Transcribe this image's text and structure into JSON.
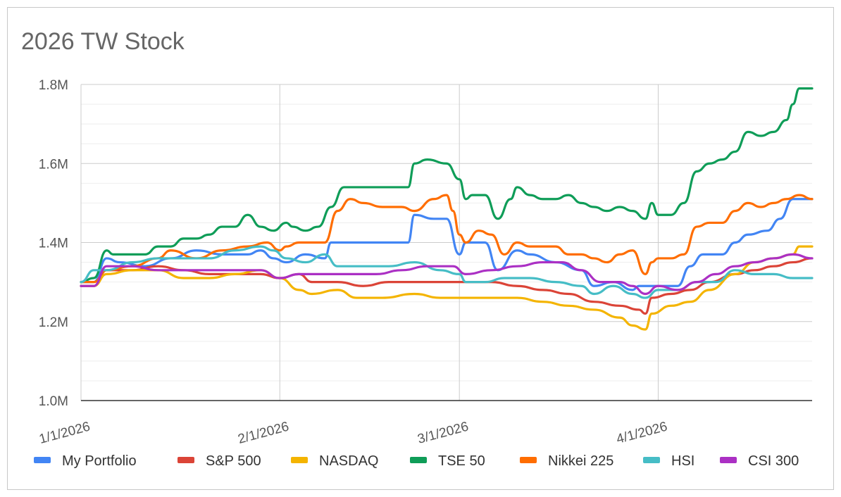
{
  "chart_data": {
    "type": "line",
    "title": "2026 TW Stock",
    "y_ticks": [
      "1.0M",
      "1.2M",
      "1.4M",
      "1.6M",
      "1.8M"
    ],
    "y_tick_values": [
      1.0,
      1.2,
      1.4,
      1.6,
      1.8
    ],
    "ylim": [
      1.0,
      1.8
    ],
    "x_ticks": [
      "1/1/2026",
      "2/1/2026",
      "3/1/2026",
      "4/1/2026"
    ],
    "x_tick_days": [
      0,
      31,
      59,
      90
    ],
    "xlim_days": [
      0,
      114
    ],
    "grid": true,
    "legend_position": "bottom",
    "series": [
      {
        "name": "My Portfolio",
        "color": "#4285f4",
        "values": [
          [
            0,
            1.3
          ],
          [
            2,
            1.3
          ],
          [
            4,
            1.36
          ],
          [
            6,
            1.35
          ],
          [
            10,
            1.34
          ],
          [
            14,
            1.36
          ],
          [
            18,
            1.38
          ],
          [
            22,
            1.37
          ],
          [
            26,
            1.37
          ],
          [
            28,
            1.38
          ],
          [
            30,
            1.36
          ],
          [
            32,
            1.35
          ],
          [
            35,
            1.37
          ],
          [
            38,
            1.36
          ],
          [
            39,
            1.4
          ],
          [
            42,
            1.4
          ],
          [
            47,
            1.4
          ],
          [
            51,
            1.4
          ],
          [
            52,
            1.47
          ],
          [
            55,
            1.46
          ],
          [
            57,
            1.46
          ],
          [
            59,
            1.37
          ],
          [
            60,
            1.4
          ],
          [
            63,
            1.4
          ],
          [
            65,
            1.33
          ],
          [
            68,
            1.38
          ],
          [
            70,
            1.37
          ],
          [
            74,
            1.35
          ],
          [
            78,
            1.33
          ],
          [
            80,
            1.29
          ],
          [
            83,
            1.3
          ],
          [
            86,
            1.28
          ],
          [
            87,
            1.29
          ],
          [
            88,
            1.29
          ],
          [
            93,
            1.29
          ],
          [
            95,
            1.34
          ],
          [
            97,
            1.37
          ],
          [
            100,
            1.37
          ],
          [
            102,
            1.4
          ],
          [
            104,
            1.42
          ],
          [
            107,
            1.43
          ],
          [
            109,
            1.46
          ],
          [
            111,
            1.51
          ],
          [
            114,
            1.51
          ]
        ]
      },
      {
        "name": "S&P 500",
        "color": "#db4437",
        "values": [
          [
            0,
            1.29
          ],
          [
            2,
            1.29
          ],
          [
            4,
            1.33
          ],
          [
            8,
            1.33
          ],
          [
            12,
            1.34
          ],
          [
            16,
            1.33
          ],
          [
            20,
            1.32
          ],
          [
            24,
            1.32
          ],
          [
            28,
            1.32
          ],
          [
            31,
            1.31
          ],
          [
            34,
            1.32
          ],
          [
            36,
            1.3
          ],
          [
            40,
            1.3
          ],
          [
            44,
            1.29
          ],
          [
            48,
            1.3
          ],
          [
            52,
            1.3
          ],
          [
            56,
            1.3
          ],
          [
            60,
            1.3
          ],
          [
            64,
            1.3
          ],
          [
            68,
            1.29
          ],
          [
            72,
            1.28
          ],
          [
            76,
            1.27
          ],
          [
            80,
            1.25
          ],
          [
            84,
            1.24
          ],
          [
            87,
            1.23
          ],
          [
            88,
            1.22
          ],
          [
            89,
            1.26
          ],
          [
            92,
            1.27
          ],
          [
            95,
            1.28
          ],
          [
            98,
            1.3
          ],
          [
            102,
            1.32
          ],
          [
            105,
            1.33
          ],
          [
            108,
            1.34
          ],
          [
            111,
            1.35
          ],
          [
            114,
            1.36
          ]
        ]
      },
      {
        "name": "NASDAQ",
        "color": "#f4b400",
        "values": [
          [
            0,
            1.29
          ],
          [
            2,
            1.29
          ],
          [
            4,
            1.32
          ],
          [
            8,
            1.33
          ],
          [
            12,
            1.33
          ],
          [
            16,
            1.31
          ],
          [
            20,
            1.31
          ],
          [
            24,
            1.32
          ],
          [
            28,
            1.33
          ],
          [
            31,
            1.31
          ],
          [
            34,
            1.28
          ],
          [
            36,
            1.27
          ],
          [
            40,
            1.28
          ],
          [
            43,
            1.26
          ],
          [
            47,
            1.26
          ],
          [
            52,
            1.27
          ],
          [
            56,
            1.26
          ],
          [
            60,
            1.26
          ],
          [
            64,
            1.26
          ],
          [
            68,
            1.26
          ],
          [
            72,
            1.25
          ],
          [
            76,
            1.24
          ],
          [
            80,
            1.23
          ],
          [
            84,
            1.21
          ],
          [
            86,
            1.19
          ],
          [
            88,
            1.18
          ],
          [
            89,
            1.22
          ],
          [
            92,
            1.24
          ],
          [
            95,
            1.25
          ],
          [
            98,
            1.28
          ],
          [
            102,
            1.32
          ],
          [
            105,
            1.35
          ],
          [
            108,
            1.36
          ],
          [
            111,
            1.37
          ],
          [
            112,
            1.39
          ],
          [
            114,
            1.39
          ]
        ]
      },
      {
        "name": "TSE 50",
        "color": "#0f9d58",
        "values": [
          [
            0,
            1.3
          ],
          [
            2,
            1.31
          ],
          [
            4,
            1.38
          ],
          [
            5,
            1.37
          ],
          [
            8,
            1.37
          ],
          [
            10,
            1.37
          ],
          [
            12,
            1.39
          ],
          [
            14,
            1.39
          ],
          [
            16,
            1.41
          ],
          [
            18,
            1.41
          ],
          [
            20,
            1.42
          ],
          [
            22,
            1.44
          ],
          [
            24,
            1.44
          ],
          [
            26,
            1.47
          ],
          [
            28,
            1.44
          ],
          [
            30,
            1.43
          ],
          [
            32,
            1.45
          ],
          [
            33,
            1.44
          ],
          [
            35,
            1.43
          ],
          [
            37,
            1.44
          ],
          [
            39,
            1.49
          ],
          [
            41,
            1.54
          ],
          [
            43,
            1.54
          ],
          [
            47,
            1.54
          ],
          [
            51,
            1.54
          ],
          [
            52,
            1.6
          ],
          [
            54,
            1.61
          ],
          [
            57,
            1.6
          ],
          [
            59,
            1.56
          ],
          [
            60,
            1.51
          ],
          [
            61,
            1.52
          ],
          [
            63,
            1.52
          ],
          [
            65,
            1.46
          ],
          [
            67,
            1.51
          ],
          [
            68,
            1.54
          ],
          [
            70,
            1.52
          ],
          [
            72,
            1.51
          ],
          [
            74,
            1.51
          ],
          [
            76,
            1.52
          ],
          [
            78,
            1.5
          ],
          [
            80,
            1.49
          ],
          [
            82,
            1.48
          ],
          [
            84,
            1.49
          ],
          [
            86,
            1.48
          ],
          [
            88,
            1.46
          ],
          [
            89,
            1.5
          ],
          [
            90,
            1.47
          ],
          [
            92,
            1.47
          ],
          [
            94,
            1.5
          ],
          [
            96,
            1.58
          ],
          [
            98,
            1.6
          ],
          [
            100,
            1.61
          ],
          [
            102,
            1.63
          ],
          [
            104,
            1.68
          ],
          [
            106,
            1.67
          ],
          [
            108,
            1.68
          ],
          [
            110,
            1.71
          ],
          [
            111,
            1.75
          ],
          [
            112,
            1.79
          ],
          [
            114,
            1.79
          ]
        ]
      },
      {
        "name": "Nikkei 225",
        "color": "#ff6d00",
        "values": [
          [
            0,
            1.3
          ],
          [
            2,
            1.3
          ],
          [
            4,
            1.33
          ],
          [
            8,
            1.34
          ],
          [
            12,
            1.36
          ],
          [
            14,
            1.38
          ],
          [
            18,
            1.36
          ],
          [
            22,
            1.38
          ],
          [
            26,
            1.39
          ],
          [
            29,
            1.4
          ],
          [
            31,
            1.38
          ],
          [
            32,
            1.39
          ],
          [
            34,
            1.4
          ],
          [
            36,
            1.4
          ],
          [
            38,
            1.4
          ],
          [
            40,
            1.48
          ],
          [
            42,
            1.51
          ],
          [
            44,
            1.5
          ],
          [
            47,
            1.49
          ],
          [
            50,
            1.49
          ],
          [
            52,
            1.48
          ],
          [
            55,
            1.51
          ],
          [
            57,
            1.52
          ],
          [
            58,
            1.48
          ],
          [
            59,
            1.42
          ],
          [
            60,
            1.4
          ],
          [
            62,
            1.43
          ],
          [
            64,
            1.42
          ],
          [
            66,
            1.37
          ],
          [
            68,
            1.4
          ],
          [
            70,
            1.39
          ],
          [
            74,
            1.39
          ],
          [
            76,
            1.37
          ],
          [
            78,
            1.37
          ],
          [
            80,
            1.36
          ],
          [
            82,
            1.35
          ],
          [
            84,
            1.37
          ],
          [
            86,
            1.38
          ],
          [
            88,
            1.32
          ],
          [
            89,
            1.35
          ],
          [
            90,
            1.36
          ],
          [
            92,
            1.36
          ],
          [
            94,
            1.37
          ],
          [
            96,
            1.44
          ],
          [
            98,
            1.45
          ],
          [
            100,
            1.45
          ],
          [
            102,
            1.48
          ],
          [
            104,
            1.5
          ],
          [
            106,
            1.49
          ],
          [
            108,
            1.5
          ],
          [
            110,
            1.51
          ],
          [
            112,
            1.52
          ],
          [
            114,
            1.51
          ]
        ]
      },
      {
        "name": "HSI",
        "color": "#46bdc6",
        "values": [
          [
            0,
            1.3
          ],
          [
            2,
            1.33
          ],
          [
            4,
            1.33
          ],
          [
            8,
            1.35
          ],
          [
            12,
            1.36
          ],
          [
            16,
            1.36
          ],
          [
            20,
            1.36
          ],
          [
            24,
            1.38
          ],
          [
            28,
            1.39
          ],
          [
            30,
            1.38
          ],
          [
            32,
            1.36
          ],
          [
            35,
            1.35
          ],
          [
            38,
            1.37
          ],
          [
            40,
            1.34
          ],
          [
            44,
            1.34
          ],
          [
            48,
            1.34
          ],
          [
            52,
            1.35
          ],
          [
            56,
            1.33
          ],
          [
            59,
            1.32
          ],
          [
            60,
            1.3
          ],
          [
            63,
            1.3
          ],
          [
            66,
            1.31
          ],
          [
            70,
            1.31
          ],
          [
            74,
            1.3
          ],
          [
            78,
            1.29
          ],
          [
            80,
            1.27
          ],
          [
            83,
            1.29
          ],
          [
            86,
            1.27
          ],
          [
            88,
            1.26
          ],
          [
            90,
            1.28
          ],
          [
            93,
            1.28
          ],
          [
            96,
            1.3
          ],
          [
            99,
            1.3
          ],
          [
            102,
            1.33
          ],
          [
            105,
            1.32
          ],
          [
            108,
            1.32
          ],
          [
            111,
            1.31
          ],
          [
            114,
            1.31
          ]
        ]
      },
      {
        "name": "CSI 300",
        "color": "#ab30c4",
        "values": [
          [
            0,
            1.29
          ],
          [
            2,
            1.29
          ],
          [
            4,
            1.34
          ],
          [
            8,
            1.34
          ],
          [
            12,
            1.33
          ],
          [
            16,
            1.33
          ],
          [
            20,
            1.33
          ],
          [
            24,
            1.33
          ],
          [
            28,
            1.33
          ],
          [
            31,
            1.31
          ],
          [
            34,
            1.32
          ],
          [
            38,
            1.32
          ],
          [
            42,
            1.32
          ],
          [
            46,
            1.32
          ],
          [
            50,
            1.33
          ],
          [
            54,
            1.34
          ],
          [
            58,
            1.34
          ],
          [
            60,
            1.32
          ],
          [
            64,
            1.33
          ],
          [
            68,
            1.34
          ],
          [
            72,
            1.35
          ],
          [
            75,
            1.35
          ],
          [
            78,
            1.33
          ],
          [
            81,
            1.3
          ],
          [
            84,
            1.3
          ],
          [
            86,
            1.29
          ],
          [
            88,
            1.27
          ],
          [
            90,
            1.29
          ],
          [
            93,
            1.28
          ],
          [
            96,
            1.3
          ],
          [
            99,
            1.32
          ],
          [
            102,
            1.34
          ],
          [
            105,
            1.35
          ],
          [
            108,
            1.36
          ],
          [
            111,
            1.37
          ],
          [
            114,
            1.36
          ]
        ]
      }
    ]
  }
}
